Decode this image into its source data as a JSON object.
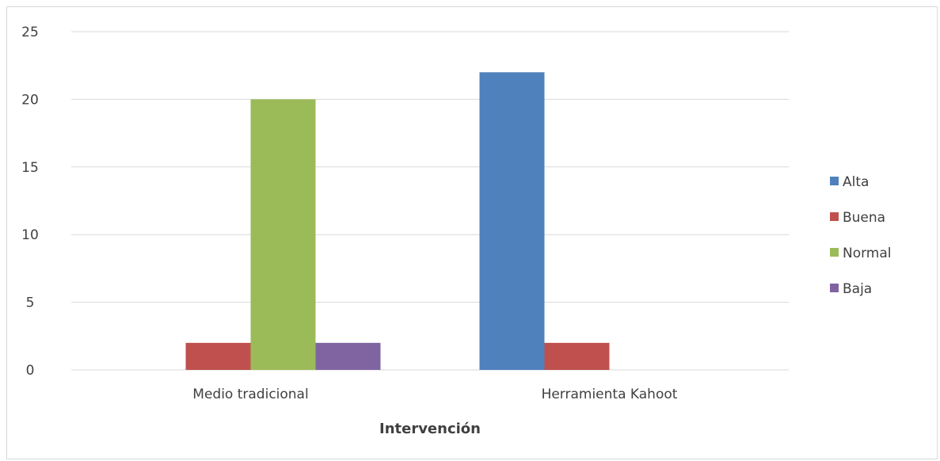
{
  "chart_data": {
    "type": "bar",
    "categories": [
      "Medio tradicional",
      "Herramienta Kahoot"
    ],
    "series": [
      {
        "name": "Alta",
        "color": "#4F81BD",
        "values": [
          0,
          22
        ]
      },
      {
        "name": "Buena",
        "color": "#C0504D",
        "values": [
          2,
          2
        ]
      },
      {
        "name": "Normal",
        "color": "#9BBB59",
        "values": [
          20,
          0
        ]
      },
      {
        "name": "Baja",
        "color": "#8064A2",
        "values": [
          2,
          0
        ]
      }
    ],
    "title": "",
    "xlabel": "Intervención",
    "ylabel": "",
    "ylim": [
      0,
      25
    ],
    "yticks": [
      "0",
      "5",
      "10",
      "15",
      "20",
      "25"
    ],
    "grid": true,
    "legend_position": "right"
  }
}
